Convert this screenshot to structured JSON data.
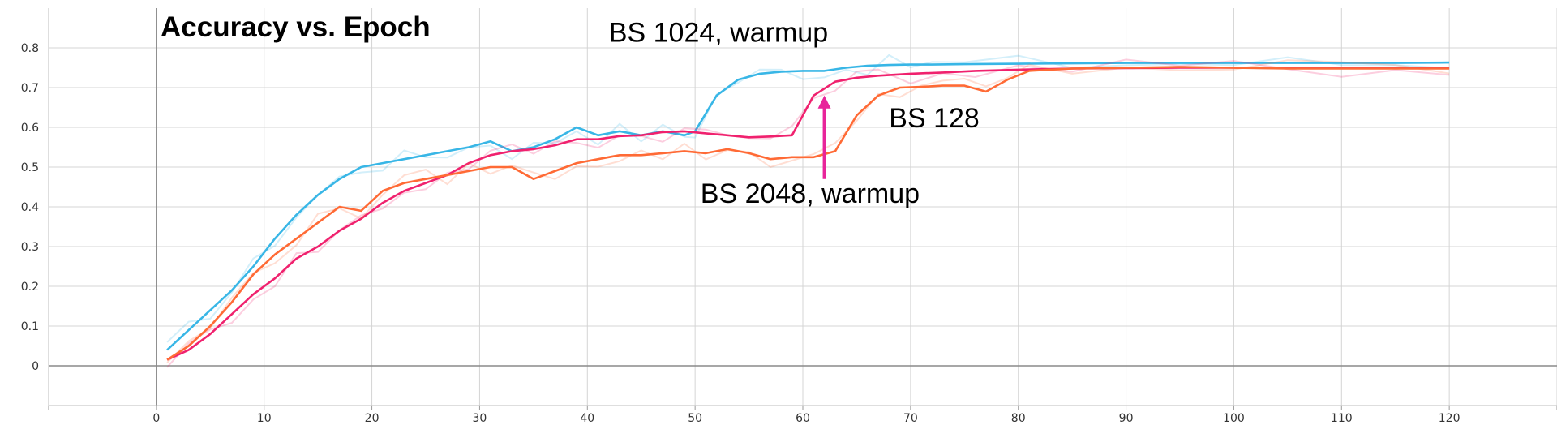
{
  "chart_data": {
    "type": "line",
    "title": "Accuracy vs. Epoch",
    "xlabel": "",
    "ylabel": "",
    "xlim": [
      -10,
      130
    ],
    "ylim": [
      -0.1,
      0.9
    ],
    "grid": true,
    "x_ticks": [
      "0",
      "10",
      "20",
      "30",
      "40",
      "50",
      "60",
      "70",
      "80",
      "90",
      "100",
      "110",
      "120"
    ],
    "y_ticks": [
      "0",
      "0.1",
      "0.2",
      "0.3",
      "0.4",
      "0.5",
      "0.6",
      "0.7",
      "0.8"
    ],
    "annotations": [
      {
        "text": "BS 1024, warmup",
        "x": 42,
        "y": 0.815
      },
      {
        "text": "BS 128",
        "x": 68,
        "y": 0.6
      },
      {
        "text": "BS 2048, warmup",
        "x": 50.5,
        "y": 0.41
      }
    ],
    "arrow": {
      "x": 62,
      "y_from": 0.47,
      "y_to": 0.68,
      "color": "#e8249a"
    },
    "series": [
      {
        "name": "",
        "color": "#38b6e6",
        "x": [
          1,
          3,
          5,
          7,
          9,
          11,
          13,
          15,
          17,
          19,
          21,
          23,
          25,
          27,
          29,
          31,
          33,
          35,
          37,
          39,
          41,
          43,
          45,
          47,
          49,
          50,
          52,
          54,
          56,
          58,
          60,
          62,
          64,
          66,
          68,
          70,
          72,
          75,
          80,
          85,
          90,
          95,
          100,
          105,
          110,
          115,
          120
        ],
        "y": [
          0.04,
          0.09,
          0.14,
          0.19,
          0.25,
          0.32,
          0.38,
          0.43,
          0.47,
          0.5,
          0.51,
          0.52,
          0.53,
          0.54,
          0.55,
          0.565,
          0.54,
          0.55,
          0.57,
          0.6,
          0.58,
          0.59,
          0.58,
          0.59,
          0.58,
          0.59,
          0.68,
          0.72,
          0.735,
          0.74,
          0.742,
          0.742,
          0.75,
          0.755,
          0.757,
          0.758,
          0.758,
          0.759,
          0.76,
          0.761,
          0.762,
          0.762,
          0.762,
          0.762,
          0.762,
          0.762,
          0.763
        ]
      },
      {
        "name": "",
        "color": "#f0216e",
        "x": [
          1,
          3,
          5,
          7,
          9,
          11,
          13,
          15,
          17,
          19,
          21,
          23,
          25,
          27,
          29,
          31,
          33,
          35,
          37,
          39,
          41,
          43,
          45,
          47,
          49,
          51,
          53,
          55,
          57,
          59,
          61,
          63,
          65,
          67,
          70,
          73,
          76,
          80,
          85,
          90,
          95,
          100,
          105,
          110,
          115,
          120
        ],
        "y": [
          0.015,
          0.04,
          0.08,
          0.13,
          0.18,
          0.22,
          0.27,
          0.3,
          0.34,
          0.37,
          0.41,
          0.44,
          0.46,
          0.48,
          0.51,
          0.53,
          0.54,
          0.545,
          0.555,
          0.57,
          0.57,
          0.578,
          0.58,
          0.588,
          0.59,
          0.585,
          0.58,
          0.575,
          0.577,
          0.58,
          0.68,
          0.715,
          0.725,
          0.73,
          0.735,
          0.738,
          0.742,
          0.745,
          0.748,
          0.749,
          0.75,
          0.75,
          0.749,
          0.749,
          0.749,
          0.749
        ]
      },
      {
        "name": "",
        "color": "#ff6a35",
        "x": [
          1,
          3,
          5,
          7,
          9,
          11,
          13,
          15,
          17,
          19,
          21,
          23,
          25,
          27,
          29,
          31,
          33,
          35,
          37,
          39,
          41,
          43,
          45,
          47,
          49,
          51,
          53,
          55,
          57,
          59,
          61,
          63,
          65,
          67,
          69,
          71,
          73,
          75,
          77,
          79,
          81,
          85,
          90,
          95,
          100,
          105,
          110,
          115,
          120
        ],
        "y": [
          0.015,
          0.05,
          0.1,
          0.16,
          0.23,
          0.28,
          0.32,
          0.36,
          0.4,
          0.39,
          0.44,
          0.46,
          0.47,
          0.48,
          0.49,
          0.5,
          0.5,
          0.47,
          0.49,
          0.51,
          0.52,
          0.53,
          0.53,
          0.535,
          0.54,
          0.535,
          0.545,
          0.535,
          0.52,
          0.525,
          0.525,
          0.54,
          0.63,
          0.68,
          0.7,
          0.702,
          0.705,
          0.705,
          0.69,
          0.72,
          0.742,
          0.748,
          0.75,
          0.752,
          0.75,
          0.748,
          0.748,
          0.748,
          0.748
        ]
      }
    ]
  }
}
